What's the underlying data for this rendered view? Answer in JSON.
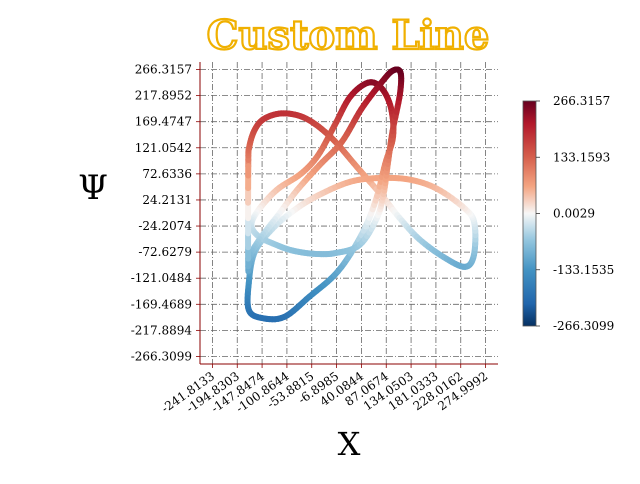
{
  "chart_data": {
    "type": "line",
    "title": "Custom Line",
    "xlabel": "X",
    "ylabel": "Ψ",
    "xlim": [
      -265.3,
      298.5
    ],
    "ylim": [
      -280.3,
      280.3
    ],
    "grid": true,
    "line_style": "colored trefoil curve, color mapped to y value",
    "x_ticks": [
      "-241.8133",
      "-194.8303",
      "-147.8474",
      "-100.8644",
      "-53.8815",
      "-6.8985",
      "40.0844",
      "87.0674",
      "134.0503",
      "181.0333",
      "228.0162",
      "274.9992"
    ],
    "y_ticks": [
      "266.3157",
      "217.8952",
      "169.4747",
      "121.0542",
      "72.6336",
      "24.2131",
      "-24.2074",
      "-72.6279",
      "-121.0484",
      "-169.4689",
      "-217.8894",
      "-266.3099"
    ],
    "colorbar": {
      "colormap": "RdBu_r",
      "range": [
        -266.3099,
        266.3157
      ],
      "ticks": [
        "266.3157",
        "133.1593",
        "0.0029",
        "-133.1535",
        "-266.3099"
      ],
      "color_low": "#053061",
      "color_mid": "#f7f7f7",
      "color_high": "#67001f"
    },
    "series": [
      {
        "x": [
          -174,
          -172,
          -161,
          -142,
          -107,
          -64,
          -17,
          32,
          79,
          112,
          150,
          196,
          236,
          253,
          254,
          236,
          183,
          131,
          75,
          19,
          -41,
          -86,
          -129,
          -162,
          -173,
          -173,
          -148,
          -106,
          -58,
          -4,
          40,
          67,
          85,
          100,
          96,
          78,
          53,
          19,
          -11,
          -42,
          -74,
          -120,
          -155,
          -168,
          -155,
          -124,
          -89,
          -46,
          -7,
          37,
          69,
          82,
          90,
          99,
          113,
          114,
          99,
          77,
          40,
          3,
          -39,
          -82,
          -119,
          -149,
          -170,
          -174
        ],
        "y": [
          87,
          123,
          156,
          176,
          185,
          175,
          140,
          85,
          32,
          -9,
          -49,
          -82,
          -100,
          -78,
          -20,
          8,
          45,
          62,
          65,
          58,
          33,
          6,
          -30,
          -73,
          -130,
          -180,
          -195,
          -193,
          -155,
          -108,
          -41,
          23,
          91,
          142,
          195,
          232,
          242,
          216,
          162,
          107,
          73,
          43,
          5,
          -22,
          -43,
          -58,
          -70,
          -76,
          -74,
          -59,
          -10,
          35,
          91,
          152,
          221,
          261,
          264,
          241,
          193,
          132,
          89,
          42,
          -6,
          -44,
          -77,
          -99
        ]
      }
    ]
  }
}
